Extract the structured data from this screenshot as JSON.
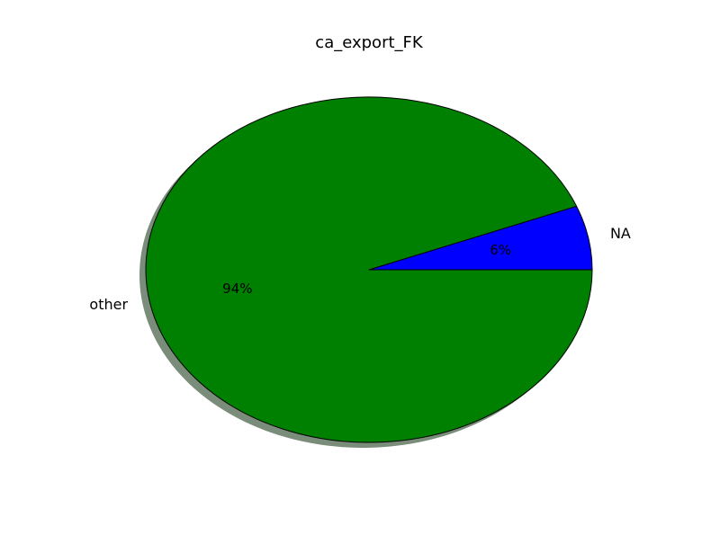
{
  "chart_data": {
    "type": "pie",
    "title": "ca_export_FK",
    "categories": [
      "NA",
      "other"
    ],
    "values": [
      6,
      94
    ],
    "value_labels": [
      "6%",
      "94%"
    ],
    "colors": [
      "#0000ff",
      "#008000"
    ],
    "shadow": true,
    "shadow_color": "#7a8c7a",
    "edge_color": "#000000",
    "start_angle_deg": 0,
    "direction": "counterclockwise",
    "legend": "none"
  }
}
